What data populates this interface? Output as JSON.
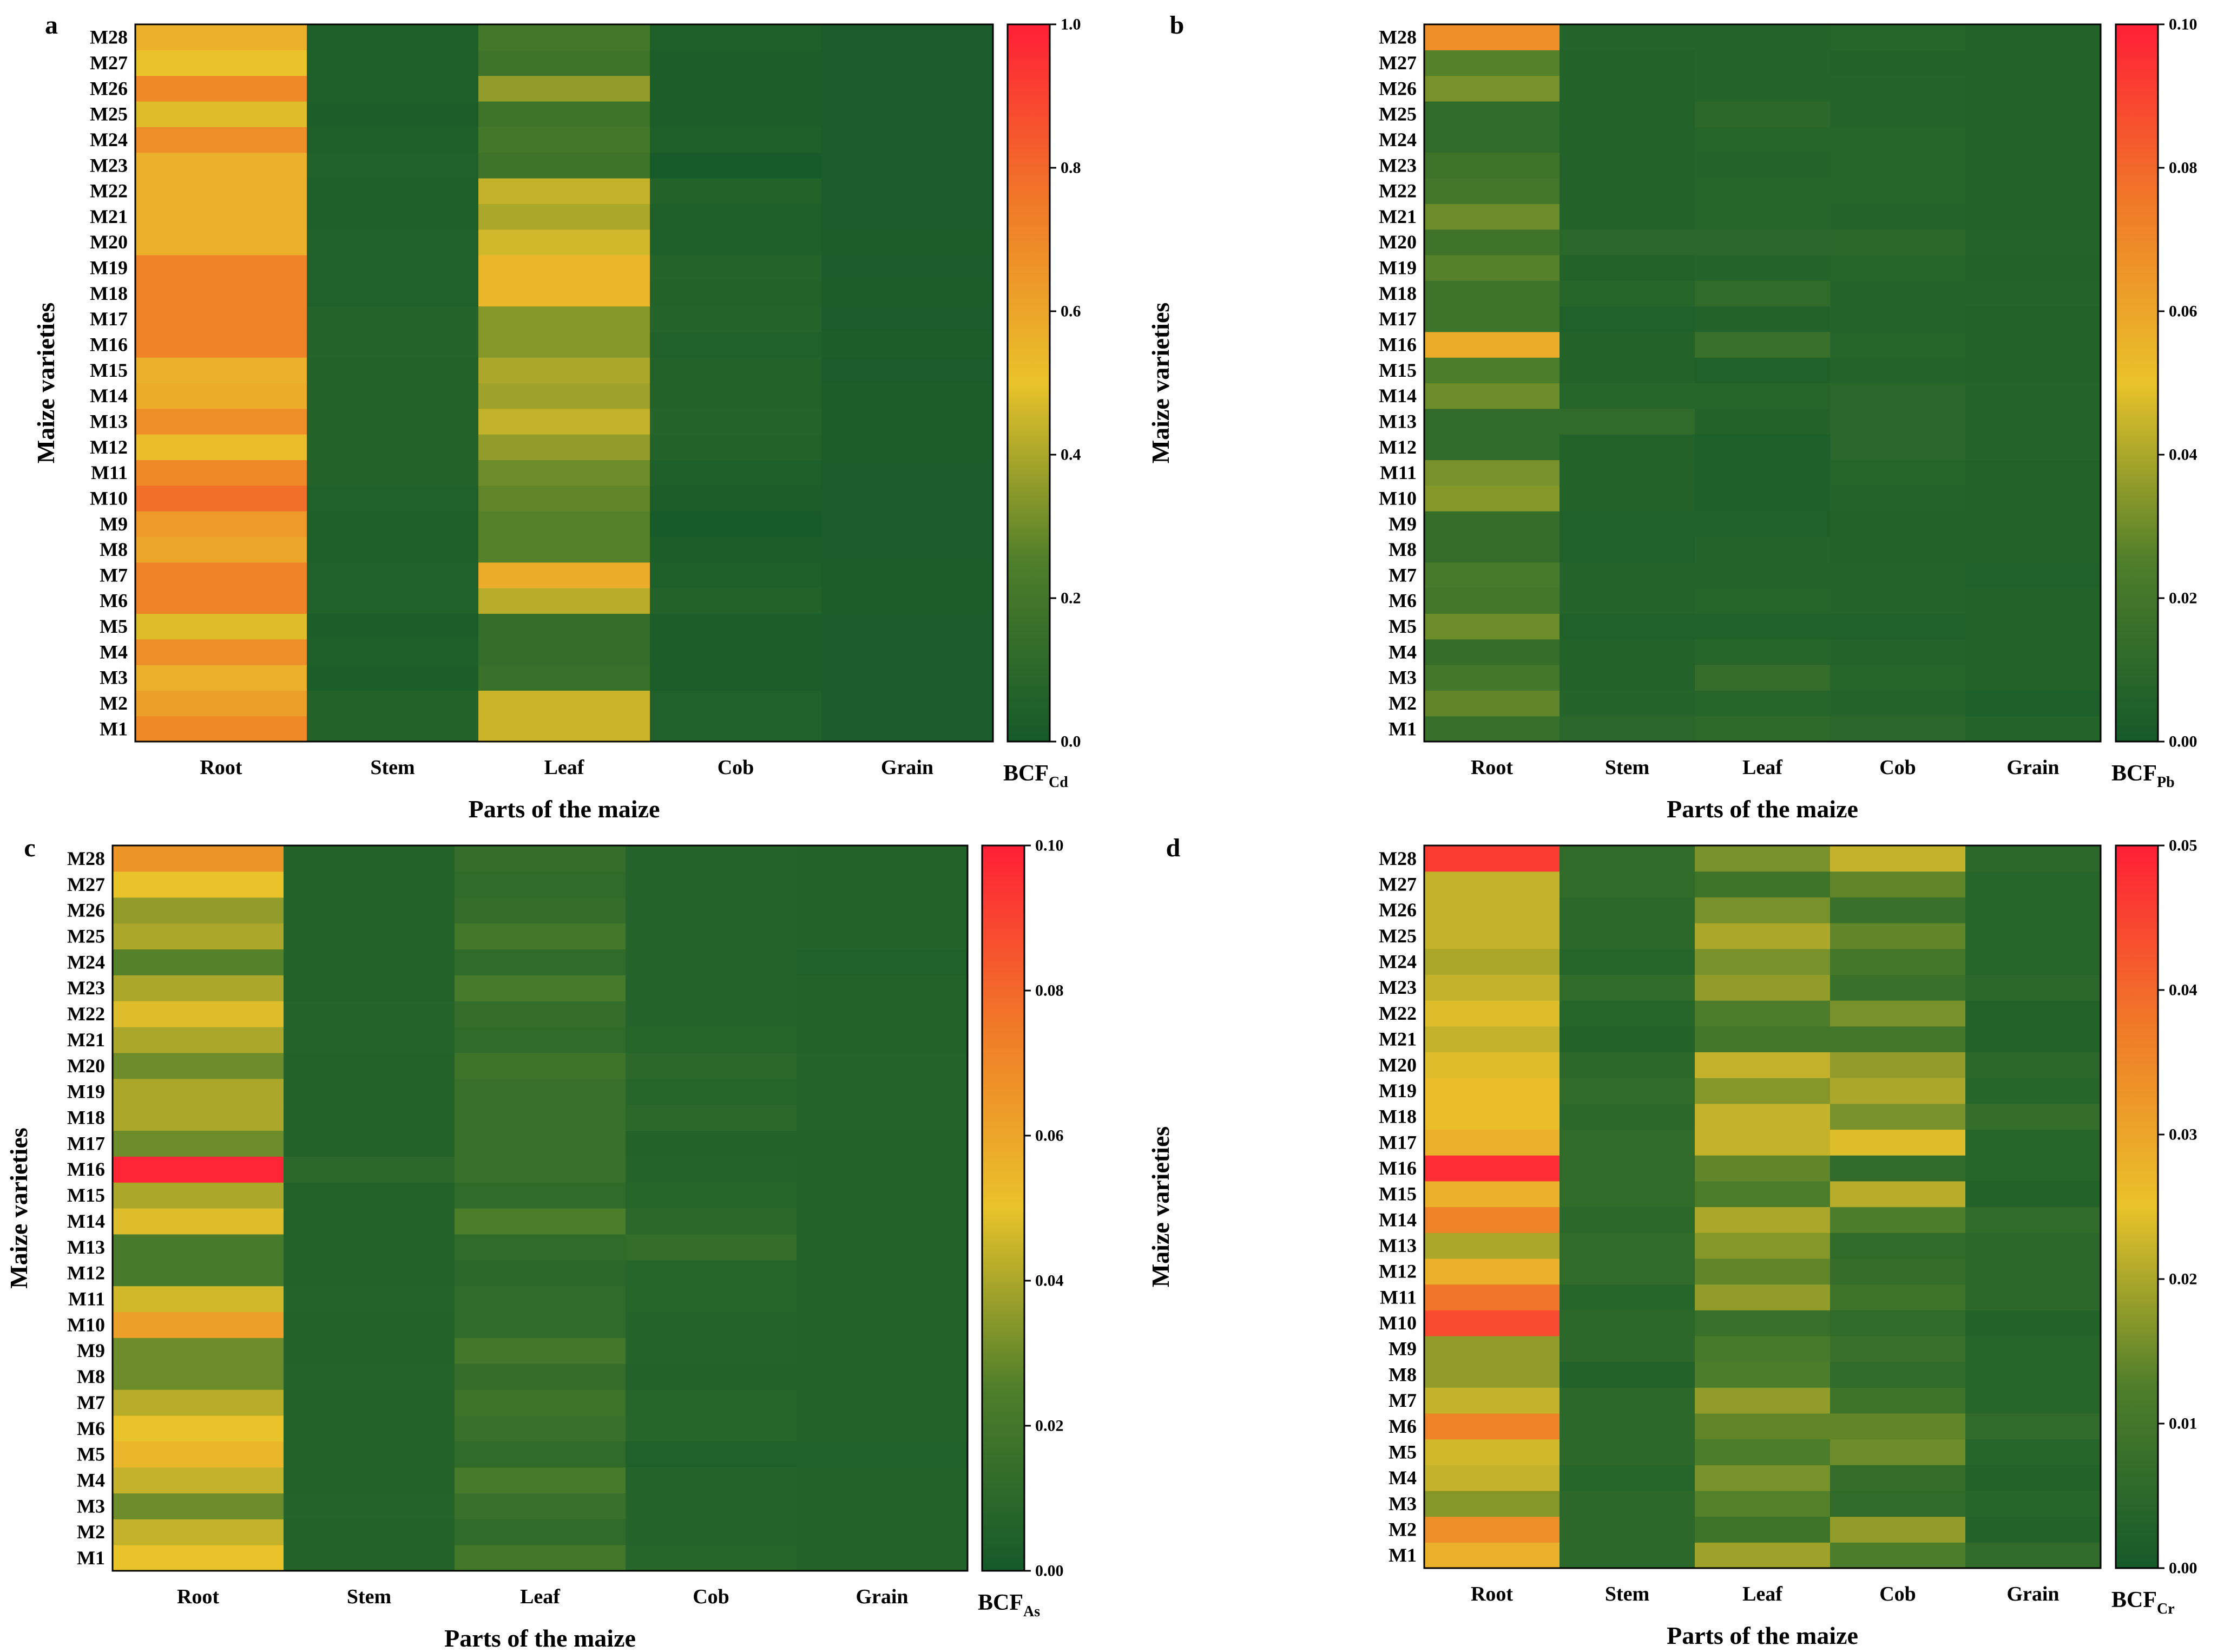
{
  "parts": [
    "Root",
    "Stem",
    "Leaf",
    "Cob",
    "Grain"
  ],
  "varieties": [
    "M1",
    "M2",
    "M3",
    "M4",
    "M5",
    "M6",
    "M7",
    "M8",
    "M9",
    "M10",
    "M11",
    "M12",
    "M13",
    "M14",
    "M15",
    "M16",
    "M17",
    "M18",
    "M19",
    "M20",
    "M21",
    "M22",
    "M23",
    "M24",
    "M25",
    "M26",
    "M27",
    "M28"
  ],
  "colors": {
    "low": "#155a2a",
    "midLow": "#4e7e2a",
    "mid": "#e9c32a",
    "midHigh": "#f07a28",
    "high": "#ff1f36"
  },
  "chart_data": [
    {
      "type": "heatmap",
      "panel_label": "a",
      "xlabel": "Parts of the maize",
      "ylabel": "Maize varieties",
      "colorbar_label": {
        "main": "BCF",
        "sub": "Cd"
      },
      "range": [
        0,
        1.0
      ],
      "colorbar_ticks": [
        "0.0",
        "0.2",
        "0.4",
        "0.6",
        "0.8",
        "1.0"
      ],
      "categories": [
        "Root",
        "Stem",
        "Leaf",
        "Cob",
        "Grain"
      ],
      "rows": [
        "M1",
        "M2",
        "M3",
        "M4",
        "M5",
        "M6",
        "M7",
        "M8",
        "M9",
        "M10",
        "M11",
        "M12",
        "M13",
        "M14",
        "M15",
        "M16",
        "M17",
        "M18",
        "M19",
        "M20",
        "M21",
        "M22",
        "M23",
        "M24",
        "M25",
        "M26",
        "M27",
        "M28"
      ],
      "values": [
        [
          0.7,
          0.06,
          0.45,
          0.05,
          0.02
        ],
        [
          0.62,
          0.06,
          0.45,
          0.05,
          0.02
        ],
        [
          0.56,
          0.03,
          0.16,
          0.03,
          0.02
        ],
        [
          0.68,
          0.04,
          0.14,
          0.03,
          0.02
        ],
        [
          0.48,
          0.03,
          0.14,
          0.03,
          0.02
        ],
        [
          0.72,
          0.05,
          0.42,
          0.06,
          0.03
        ],
        [
          0.72,
          0.05,
          0.58,
          0.04,
          0.03
        ],
        [
          0.6,
          0.04,
          0.26,
          0.03,
          0.02
        ],
        [
          0.64,
          0.04,
          0.26,
          0.01,
          0.02
        ],
        [
          0.78,
          0.05,
          0.28,
          0.03,
          0.02
        ],
        [
          0.7,
          0.06,
          0.3,
          0.04,
          0.02
        ],
        [
          0.52,
          0.06,
          0.36,
          0.06,
          0.03
        ],
        [
          0.68,
          0.06,
          0.44,
          0.07,
          0.03
        ],
        [
          0.58,
          0.06,
          0.38,
          0.06,
          0.03
        ],
        [
          0.56,
          0.06,
          0.4,
          0.06,
          0.02
        ],
        [
          0.72,
          0.07,
          0.34,
          0.05,
          0.03
        ],
        [
          0.72,
          0.07,
          0.34,
          0.07,
          0.02
        ],
        [
          0.72,
          0.05,
          0.54,
          0.06,
          0.03
        ],
        [
          0.72,
          0.05,
          0.54,
          0.07,
          0.02
        ],
        [
          0.56,
          0.05,
          0.46,
          0.04,
          0.03
        ],
        [
          0.56,
          0.04,
          0.4,
          0.04,
          0.02
        ],
        [
          0.56,
          0.04,
          0.44,
          0.06,
          0.02
        ],
        [
          0.56,
          0.05,
          0.18,
          0.01,
          0.02
        ],
        [
          0.68,
          0.04,
          0.2,
          0.04,
          0.02
        ],
        [
          0.48,
          0.03,
          0.18,
          0.03,
          0.02
        ],
        [
          0.7,
          0.04,
          0.36,
          0.03,
          0.02
        ],
        [
          0.5,
          0.04,
          0.18,
          0.03,
          0.02
        ],
        [
          0.56,
          0.04,
          0.2,
          0.04,
          0.02
        ]
      ]
    },
    {
      "type": "heatmap",
      "panel_label": "b",
      "xlabel": "Parts of the maize",
      "ylabel": "Maize varieties",
      "colorbar_label": {
        "main": "BCF",
        "sub": "Pb"
      },
      "range": [
        0,
        0.1
      ],
      "colorbar_ticks": [
        "0.00",
        "0.02",
        "0.04",
        "0.06",
        "0.08",
        "0.10"
      ],
      "categories": [
        "Root",
        "Stem",
        "Leaf",
        "Cob",
        "Grain"
      ],
      "rows": [
        "M1",
        "M2",
        "M3",
        "M4",
        "M5",
        "M6",
        "M7",
        "M8",
        "M9",
        "M10",
        "M11",
        "M12",
        "M13",
        "M14",
        "M15",
        "M16",
        "M17",
        "M18",
        "M19",
        "M20",
        "M21",
        "M22",
        "M23",
        "M24",
        "M25",
        "M26",
        "M27",
        "M28"
      ],
      "values": [
        [
          0.015,
          0.009,
          0.011,
          0.009,
          0.007
        ],
        [
          0.028,
          0.007,
          0.008,
          0.007,
          0.004
        ],
        [
          0.02,
          0.006,
          0.014,
          0.008,
          0.006
        ],
        [
          0.014,
          0.006,
          0.008,
          0.007,
          0.006
        ],
        [
          0.03,
          0.005,
          0.005,
          0.005,
          0.006
        ],
        [
          0.02,
          0.007,
          0.008,
          0.007,
          0.006
        ],
        [
          0.022,
          0.007,
          0.007,
          0.007,
          0.005
        ],
        [
          0.014,
          0.005,
          0.007,
          0.006,
          0.006
        ],
        [
          0.014,
          0.005,
          0.005,
          0.006,
          0.006
        ],
        [
          0.034,
          0.006,
          0.004,
          0.007,
          0.006
        ],
        [
          0.032,
          0.006,
          0.004,
          0.008,
          0.006
        ],
        [
          0.012,
          0.006,
          0.004,
          0.009,
          0.007
        ],
        [
          0.012,
          0.012,
          0.006,
          0.009,
          0.007
        ],
        [
          0.03,
          0.008,
          0.008,
          0.009,
          0.007
        ],
        [
          0.024,
          0.006,
          0.005,
          0.007,
          0.006
        ],
        [
          0.058,
          0.006,
          0.016,
          0.008,
          0.006
        ],
        [
          0.018,
          0.005,
          0.006,
          0.007,
          0.006
        ],
        [
          0.018,
          0.008,
          0.012,
          0.007,
          0.007
        ],
        [
          0.026,
          0.006,
          0.007,
          0.008,
          0.006
        ],
        [
          0.018,
          0.009,
          0.009,
          0.01,
          0.007
        ],
        [
          0.03,
          0.006,
          0.008,
          0.007,
          0.006
        ],
        [
          0.02,
          0.006,
          0.008,
          0.008,
          0.006
        ],
        [
          0.018,
          0.006,
          0.007,
          0.008,
          0.006
        ],
        [
          0.012,
          0.006,
          0.008,
          0.008,
          0.006
        ],
        [
          0.012,
          0.006,
          0.01,
          0.007,
          0.006
        ],
        [
          0.032,
          0.006,
          0.007,
          0.007,
          0.006
        ],
        [
          0.026,
          0.006,
          0.007,
          0.006,
          0.006
        ],
        [
          0.068,
          0.007,
          0.007,
          0.008,
          0.006
        ]
      ]
    },
    {
      "type": "heatmap",
      "panel_label": "c",
      "xlabel": "Parts of the maize",
      "ylabel": "Maize varieties",
      "colorbar_label": {
        "main": "BCF",
        "sub": "As"
      },
      "range": [
        0,
        0.1
      ],
      "colorbar_ticks": [
        "0.00",
        "0.02",
        "0.04",
        "0.06",
        "0.08",
        "0.10"
      ],
      "categories": [
        "Root",
        "Stem",
        "Leaf",
        "Cob",
        "Grain"
      ],
      "rows": [
        "M1",
        "M2",
        "M3",
        "M4",
        "M5",
        "M6",
        "M7",
        "M8",
        "M9",
        "M10",
        "M11",
        "M12",
        "M13",
        "M14",
        "M15",
        "M16",
        "M17",
        "M18",
        "M19",
        "M20",
        "M21",
        "M22",
        "M23",
        "M24",
        "M25",
        "M26",
        "M27",
        "M28"
      ],
      "values": [
        [
          0.05,
          0.006,
          0.02,
          0.008,
          0.006
        ],
        [
          0.044,
          0.006,
          0.012,
          0.007,
          0.006
        ],
        [
          0.03,
          0.007,
          0.016,
          0.007,
          0.006
        ],
        [
          0.044,
          0.006,
          0.022,
          0.007,
          0.006
        ],
        [
          0.054,
          0.006,
          0.012,
          0.005,
          0.005
        ],
        [
          0.05,
          0.006,
          0.016,
          0.008,
          0.006
        ],
        [
          0.042,
          0.006,
          0.018,
          0.008,
          0.006
        ],
        [
          0.03,
          0.007,
          0.014,
          0.006,
          0.006
        ],
        [
          0.03,
          0.006,
          0.02,
          0.007,
          0.006
        ],
        [
          0.062,
          0.006,
          0.012,
          0.007,
          0.006
        ],
        [
          0.046,
          0.007,
          0.012,
          0.008,
          0.006
        ],
        [
          0.022,
          0.006,
          0.01,
          0.008,
          0.006
        ],
        [
          0.022,
          0.006,
          0.012,
          0.014,
          0.006
        ],
        [
          0.048,
          0.006,
          0.024,
          0.01,
          0.006
        ],
        [
          0.04,
          0.006,
          0.012,
          0.008,
          0.006
        ],
        [
          0.098,
          0.01,
          0.016,
          0.007,
          0.006
        ],
        [
          0.03,
          0.006,
          0.016,
          0.006,
          0.006
        ],
        [
          0.04,
          0.006,
          0.016,
          0.01,
          0.007
        ],
        [
          0.04,
          0.006,
          0.016,
          0.008,
          0.007
        ],
        [
          0.03,
          0.006,
          0.018,
          0.01,
          0.007
        ],
        [
          0.04,
          0.007,
          0.012,
          0.008,
          0.006
        ],
        [
          0.048,
          0.007,
          0.014,
          0.007,
          0.006
        ],
        [
          0.04,
          0.006,
          0.022,
          0.007,
          0.006
        ],
        [
          0.026,
          0.006,
          0.012,
          0.007,
          0.005
        ],
        [
          0.04,
          0.006,
          0.02,
          0.007,
          0.006
        ],
        [
          0.036,
          0.006,
          0.014,
          0.007,
          0.006
        ],
        [
          0.05,
          0.006,
          0.012,
          0.007,
          0.006
        ],
        [
          0.066,
          0.006,
          0.014,
          0.007,
          0.006
        ]
      ]
    },
    {
      "type": "heatmap",
      "panel_label": "d",
      "xlabel": "Parts of the maize",
      "ylabel": "Maize varieties",
      "colorbar_label": {
        "main": "BCF",
        "sub": "Cr"
      },
      "range": [
        0,
        0.05
      ],
      "colorbar_ticks": [
        "0.00",
        "0.01",
        "0.02",
        "0.03",
        "0.04",
        "0.05"
      ],
      "categories": [
        "Root",
        "Stem",
        "Leaf",
        "Cob",
        "Grain"
      ],
      "rows": [
        "M1",
        "M2",
        "M3",
        "M4",
        "M5",
        "M6",
        "M7",
        "M8",
        "M9",
        "M10",
        "M11",
        "M12",
        "M13",
        "M14",
        "M15",
        "M16",
        "M17",
        "M18",
        "M19",
        "M20",
        "M21",
        "M22",
        "M23",
        "M24",
        "M25",
        "M26",
        "M27",
        "M28"
      ],
      "values": [
        [
          0.028,
          0.005,
          0.019,
          0.012,
          0.006
        ],
        [
          0.034,
          0.005,
          0.009,
          0.018,
          0.003
        ],
        [
          0.017,
          0.005,
          0.013,
          0.006,
          0.004
        ],
        [
          0.022,
          0.004,
          0.016,
          0.007,
          0.003
        ],
        [
          0.023,
          0.005,
          0.012,
          0.015,
          0.004
        ],
        [
          0.036,
          0.005,
          0.014,
          0.014,
          0.006
        ],
        [
          0.022,
          0.005,
          0.018,
          0.009,
          0.004
        ],
        [
          0.018,
          0.003,
          0.012,
          0.006,
          0.004
        ],
        [
          0.018,
          0.005,
          0.011,
          0.008,
          0.004
        ],
        [
          0.044,
          0.005,
          0.008,
          0.006,
          0.003
        ],
        [
          0.038,
          0.004,
          0.018,
          0.009,
          0.005
        ],
        [
          0.028,
          0.006,
          0.014,
          0.007,
          0.005
        ],
        [
          0.02,
          0.006,
          0.017,
          0.006,
          0.005
        ],
        [
          0.036,
          0.005,
          0.02,
          0.012,
          0.006
        ],
        [
          0.028,
          0.006,
          0.012,
          0.021,
          0.003
        ],
        [
          0.048,
          0.006,
          0.014,
          0.006,
          0.004
        ],
        [
          0.028,
          0.006,
          0.022,
          0.024,
          0.004
        ],
        [
          0.026,
          0.005,
          0.022,
          0.016,
          0.007
        ],
        [
          0.026,
          0.006,
          0.017,
          0.02,
          0.004
        ],
        [
          0.024,
          0.005,
          0.022,
          0.018,
          0.005
        ],
        [
          0.022,
          0.003,
          0.01,
          0.01,
          0.003
        ],
        [
          0.024,
          0.004,
          0.012,
          0.016,
          0.003
        ],
        [
          0.022,
          0.006,
          0.018,
          0.008,
          0.005
        ],
        [
          0.02,
          0.004,
          0.016,
          0.01,
          0.004
        ],
        [
          0.022,
          0.005,
          0.02,
          0.014,
          0.004
        ],
        [
          0.022,
          0.005,
          0.016,
          0.008,
          0.004
        ],
        [
          0.022,
          0.006,
          0.009,
          0.014,
          0.004
        ],
        [
          0.046,
          0.006,
          0.016,
          0.022,
          0.005
        ]
      ]
    }
  ]
}
